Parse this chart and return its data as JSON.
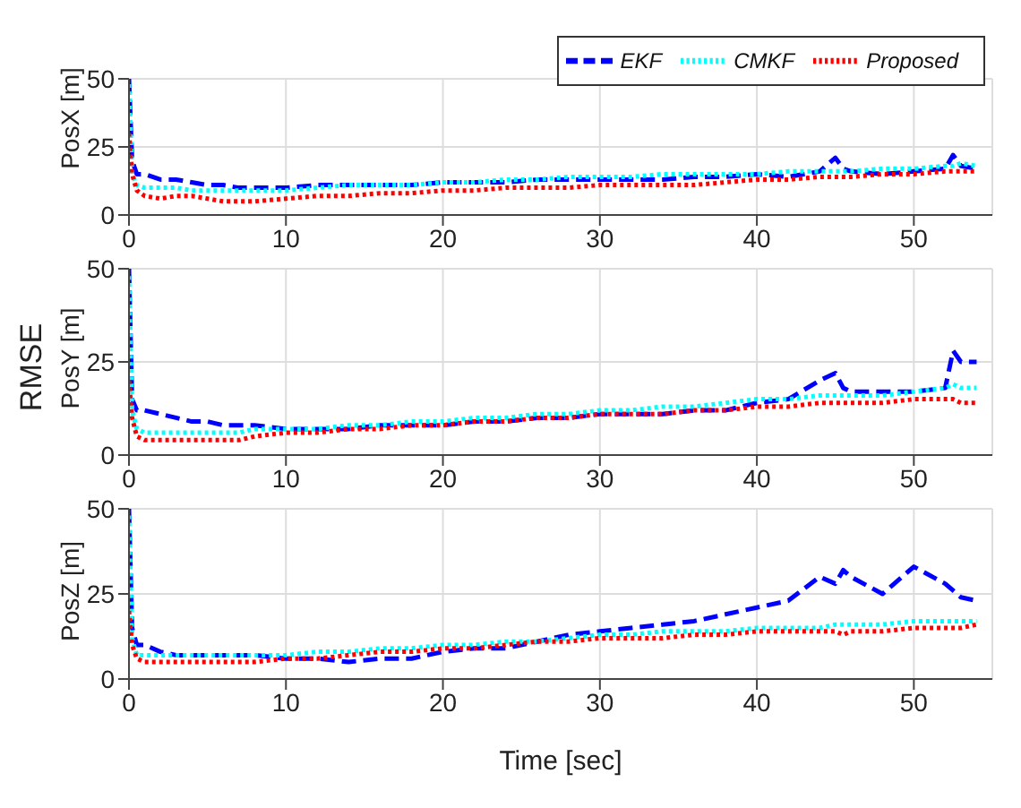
{
  "chart_data": [
    {
      "type": "line",
      "ylabel": "PosX [m]",
      "x": [
        0,
        0.2,
        0.5,
        1,
        2,
        3,
        4,
        5,
        6,
        7,
        8,
        10,
        12,
        14,
        16,
        18,
        20,
        22,
        24,
        26,
        28,
        30,
        32,
        34,
        36,
        38,
        40,
        42,
        44,
        45,
        45.5,
        46,
        48,
        50,
        52,
        52.5,
        53,
        54
      ],
      "xlim": [
        0,
        55
      ],
      "xticks": [
        0,
        10,
        20,
        30,
        40,
        50
      ],
      "ylim": [
        0,
        50
      ],
      "yticks": [
        0,
        25,
        50
      ],
      "grid": true,
      "legend": "top right",
      "series": [
        {
          "name": "EKF",
          "color": "#0000ff",
          "line_style": "dashed",
          "values": [
            50,
            20,
            15,
            15,
            13,
            13,
            12,
            11,
            11,
            10,
            10,
            10,
            11,
            11,
            11,
            11,
            12,
            12,
            12,
            13,
            13,
            13,
            13,
            13,
            14,
            14,
            15,
            14,
            16,
            21,
            17,
            16,
            15,
            16,
            17,
            22,
            18,
            17
          ]
        },
        {
          "name": "CMKF",
          "color": "#00ffff",
          "line_style": "dotted",
          "values": [
            48,
            15,
            11,
            10,
            10,
            10,
            9,
            9,
            9,
            9,
            9,
            9,
            10,
            11,
            11,
            11,
            12,
            12,
            13,
            13,
            14,
            14,
            14,
            15,
            15,
            15,
            15,
            16,
            16,
            16,
            16,
            16,
            17,
            17,
            18,
            18,
            19,
            18
          ]
        },
        {
          "name": "Proposed",
          "color": "#ff0000",
          "line_style": "dotted",
          "values": [
            30,
            15,
            9,
            7,
            6,
            7,
            7,
            6,
            5,
            5,
            5,
            6,
            7,
            7,
            8,
            8,
            9,
            9,
            10,
            10,
            10,
            11,
            11,
            11,
            11,
            12,
            13,
            13,
            14,
            14,
            14,
            14,
            15,
            15,
            16,
            16,
            16,
            16
          ]
        }
      ]
    },
    {
      "type": "line",
      "ylabel": "PosY [m]",
      "annotations": [
        "RMSE"
      ],
      "x": [
        0,
        0.2,
        0.5,
        1,
        2,
        3,
        4,
        5,
        6,
        7,
        8,
        10,
        12,
        14,
        16,
        18,
        20,
        22,
        24,
        26,
        28,
        30,
        32,
        34,
        36,
        38,
        40,
        42,
        44,
        45,
        45.5,
        46,
        48,
        50,
        52,
        52.5,
        53,
        54
      ],
      "xlim": [
        0,
        55
      ],
      "xticks": [
        0,
        10,
        20,
        30,
        40,
        50
      ],
      "ylim": [
        0,
        50
      ],
      "yticks": [
        0,
        25,
        50
      ],
      "grid": true,
      "series": [
        {
          "color": "#0000ff",
          "line_style": "dashed",
          "values": [
            50,
            15,
            12,
            12,
            11,
            10,
            9,
            9,
            8,
            8,
            8,
            7,
            7,
            7,
            8,
            8,
            8,
            9,
            9,
            10,
            10,
            11,
            11,
            11,
            12,
            12,
            14,
            15,
            20,
            22,
            18,
            17,
            17,
            17,
            18,
            28,
            25,
            25
          ]
        },
        {
          "color": "#00ffff",
          "line_style": "dotted",
          "values": [
            48,
            12,
            7,
            6,
            6,
            6,
            6,
            6,
            6,
            6,
            7,
            7,
            7,
            8,
            8,
            9,
            9,
            10,
            10,
            11,
            11,
            12,
            12,
            13,
            13,
            14,
            15,
            15,
            16,
            16,
            16,
            16,
            16,
            17,
            18,
            19,
            18,
            18
          ]
        },
        {
          "color": "#ff0000",
          "line_style": "dotted",
          "values": [
            20,
            10,
            5,
            4,
            4,
            4,
            4,
            4,
            4,
            4,
            5,
            6,
            6,
            7,
            7,
            8,
            8,
            9,
            9,
            10,
            10,
            11,
            11,
            11,
            12,
            12,
            13,
            13,
            14,
            14,
            14,
            14,
            14,
            15,
            15,
            15,
            14,
            14
          ]
        }
      ]
    },
    {
      "type": "line",
      "ylabel": "PosZ [m]",
      "xlabel": "Time [sec]",
      "x": [
        0,
        0.2,
        0.5,
        1,
        2,
        3,
        4,
        5,
        6,
        7,
        8,
        10,
        12,
        14,
        16,
        18,
        20,
        22,
        24,
        26,
        28,
        30,
        32,
        34,
        36,
        38,
        40,
        42,
        44,
        45,
        45.5,
        46,
        48,
        50,
        52,
        52.5,
        53,
        54
      ],
      "xlim": [
        0,
        55
      ],
      "xticks": [
        0,
        10,
        20,
        30,
        40,
        50
      ],
      "ylim": [
        0,
        50
      ],
      "yticks": [
        0,
        25,
        50
      ],
      "grid": true,
      "series": [
        {
          "color": "#0000ff",
          "line_style": "dashed",
          "values": [
            50,
            15,
            10,
            10,
            8,
            7,
            7,
            7,
            7,
            7,
            7,
            6,
            6,
            5,
            6,
            6,
            8,
            9,
            9,
            11,
            13,
            14,
            15,
            16,
            17,
            19,
            21,
            23,
            30,
            28,
            32,
            30,
            25,
            33,
            28,
            26,
            24,
            23
          ]
        },
        {
          "color": "#00ffff",
          "line_style": "dotted",
          "values": [
            48,
            12,
            7,
            7,
            7,
            7,
            7,
            7,
            7,
            7,
            7,
            7,
            8,
            8,
            9,
            9,
            10,
            10,
            11,
            11,
            12,
            13,
            13,
            14,
            14,
            14,
            15,
            15,
            15,
            16,
            16,
            16,
            16,
            17,
            17,
            17,
            17,
            17
          ]
        },
        {
          "color": "#ff0000",
          "line_style": "dotted",
          "values": [
            20,
            10,
            6,
            5,
            5,
            5,
            5,
            5,
            5,
            5,
            5,
            6,
            6,
            7,
            8,
            8,
            9,
            9,
            10,
            11,
            11,
            12,
            12,
            12,
            13,
            13,
            14,
            14,
            14,
            14,
            13,
            14,
            14,
            15,
            15,
            15,
            15,
            16
          ]
        }
      ]
    }
  ]
}
